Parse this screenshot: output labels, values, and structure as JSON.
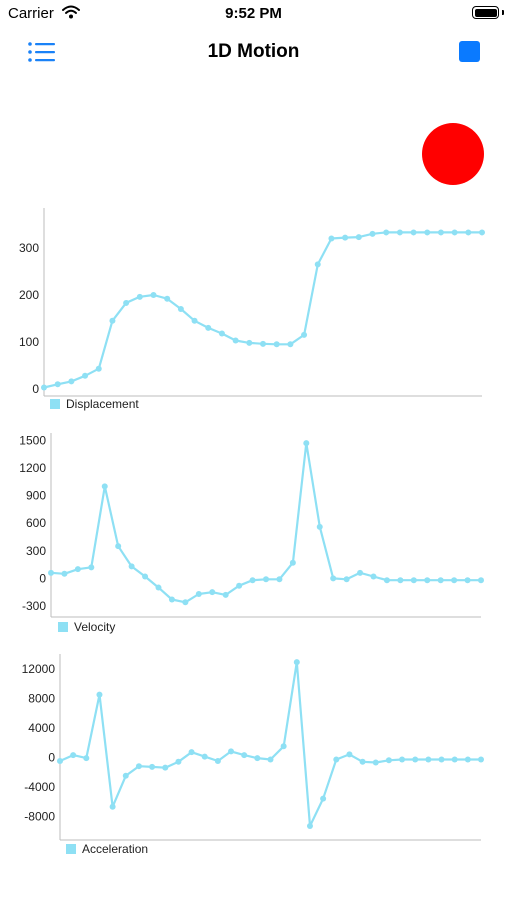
{
  "status_bar": {
    "carrier": "Carrier",
    "time": "9:52 PM"
  },
  "nav": {
    "title": "1D Motion",
    "menu_icon": "list-icon",
    "stop_icon": "stop-square-icon"
  },
  "colors": {
    "series": "#8ee0f4",
    "indicator": "#ff0000",
    "accent": "#0a7aff"
  },
  "chart_data": [
    {
      "type": "line",
      "x": [
        0,
        1,
        2,
        3,
        4,
        5,
        6,
        7,
        8,
        9,
        10,
        11,
        12,
        13,
        14,
        15,
        16,
        17,
        18,
        19,
        20,
        21,
        22,
        23,
        24,
        25,
        26,
        27,
        28,
        29,
        30,
        31,
        32
      ],
      "series": [
        {
          "name": "Displacement",
          "values": [
            3,
            10,
            16,
            28,
            43,
            145,
            183,
            196,
            200,
            192,
            170,
            145,
            130,
            118,
            103,
            98,
            96,
            95,
            95,
            115,
            265,
            320,
            322,
            323,
            330,
            333,
            333,
            333,
            333,
            333,
            333,
            333,
            333
          ]
        }
      ],
      "yticks": [
        0,
        100,
        200,
        300
      ],
      "ylim": [
        -15,
        385
      ],
      "legend": "bottom-left",
      "grid": false
    },
    {
      "type": "line",
      "x": [
        0,
        1,
        2,
        3,
        4,
        5,
        6,
        7,
        8,
        9,
        10,
        11,
        12,
        13,
        14,
        15,
        16,
        17,
        18,
        19,
        20,
        21,
        22,
        23,
        24,
        25,
        26,
        27,
        28,
        29,
        30,
        31,
        32
      ],
      "series": [
        {
          "name": "Velocity",
          "values": [
            60,
            50,
            100,
            120,
            1000,
            350,
            130,
            20,
            -100,
            -230,
            -260,
            -170,
            -150,
            -180,
            -80,
            -20,
            -10,
            -10,
            170,
            1470,
            560,
            0,
            -10,
            60,
            20,
            -20,
            -20,
            -20,
            -20,
            -20,
            -20,
            -20,
            -20
          ]
        }
      ],
      "yticks": [
        -300,
        0,
        300,
        600,
        900,
        1200,
        1500
      ],
      "ylim": [
        -420,
        1580
      ],
      "legend": "bottom-left",
      "grid": false
    },
    {
      "type": "line",
      "x": [
        0,
        1,
        2,
        3,
        4,
        5,
        6,
        7,
        8,
        9,
        10,
        11,
        12,
        13,
        14,
        15,
        16,
        17,
        18,
        19,
        20,
        21,
        22,
        23,
        24,
        25,
        26,
        27,
        28,
        29,
        30,
        31,
        32
      ],
      "series": [
        {
          "name": "Acceleration",
          "values": [
            -500,
            300,
            -100,
            8500,
            -6700,
            -2500,
            -1200,
            -1300,
            -1400,
            -600,
            700,
            100,
            -500,
            800,
            300,
            -100,
            -300,
            1500,
            12900,
            -9300,
            -5600,
            -300,
            400,
            -600,
            -700,
            -400,
            -300,
            -300,
            -300,
            -300,
            -300,
            -300,
            -300
          ]
        }
      ],
      "yticks": [
        -8000,
        -4000,
        0,
        4000,
        8000,
        12000
      ],
      "ylim": [
        -11200,
        14000
      ],
      "legend": "bottom-left",
      "grid": false
    }
  ]
}
